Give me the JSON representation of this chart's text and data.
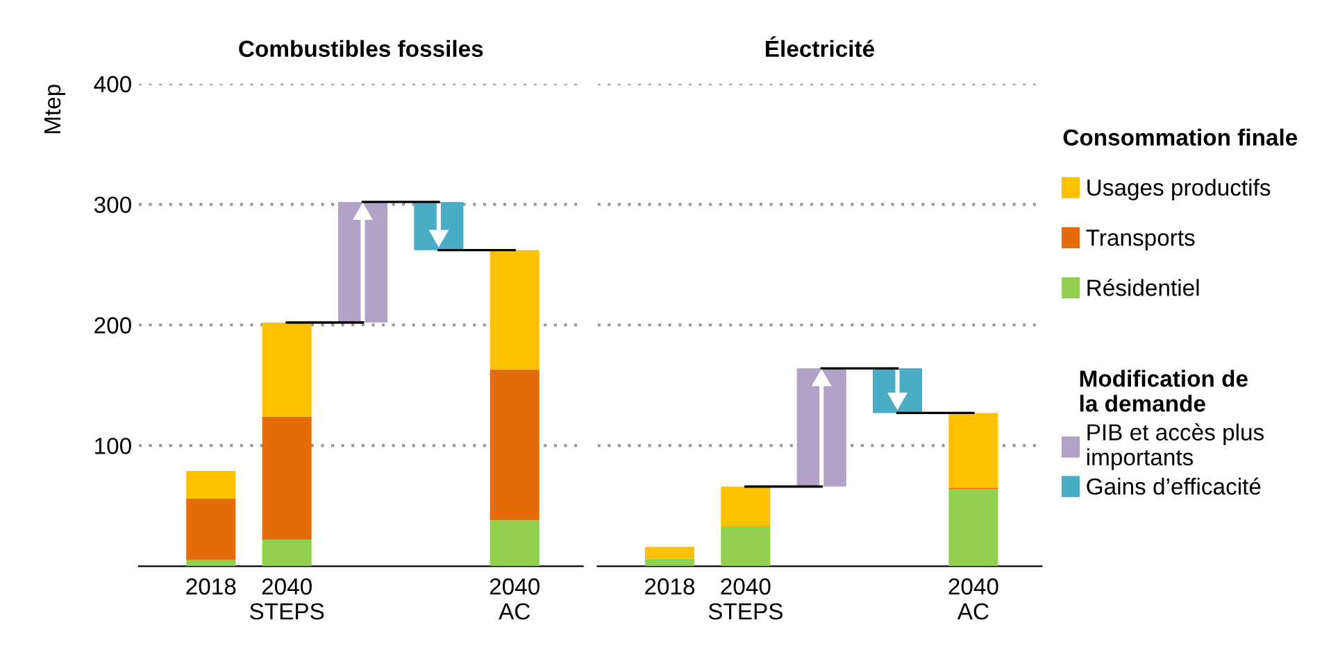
{
  "chart_data": [
    {
      "type": "bar",
      "title": "Combustibles fossiles",
      "ylabel": "Mtep",
      "stacked": true,
      "categories": [
        "2018",
        "2040\nSTEPS",
        null,
        null,
        "2040\nAC"
      ],
      "ylim": [
        0,
        400
      ],
      "yticks": [
        100,
        200,
        300,
        400
      ],
      "grid": "y",
      "series": [
        {
          "color": "#92d050",
          "values": [
            5,
            22,
            null,
            null,
            38
          ]
        },
        {
          "color": "#e46c0a",
          "values": [
            51,
            102,
            null,
            null,
            125
          ]
        },
        {
          "color": "#ffc000",
          "values": [
            23,
            78,
            null,
            null,
            99
          ]
        },
        {
          "color": "#b3a2c7",
          "values": [
            null,
            null,
            100,
            null,
            null
          ],
          "base": [
            null,
            null,
            202,
            null,
            null
          ]
        },
        {
          "color": "#4bacc6",
          "values": [
            null,
            null,
            null,
            40,
            null
          ],
          "base": [
            null,
            null,
            null,
            262,
            null
          ]
        }
      ]
    },
    {
      "type": "bar",
      "title": "Électricité",
      "stacked": true,
      "categories": [
        "2018",
        "2040\nSTEPS",
        null,
        null,
        "2040\nAC"
      ],
      "ylim": [
        0,
        400
      ],
      "yticks": [
        100,
        200,
        300,
        400
      ],
      "grid": "y",
      "tick_labels": "x",
      "legend": "right",
      "legend_title": "Consommation finale",
      "annotations": [
        "Modification de\nla demande"
      ],
      "series": [
        {
          "name": "Résidentiel",
          "color": "#92d050",
          "values": [
            6,
            33,
            null,
            null,
            64
          ]
        },
        {
          "name": "Transports",
          "color": "#e46c0a",
          "values": [
            null,
            null,
            null,
            null,
            1
          ]
        },
        {
          "name": "Usages productifs",
          "color": "#ffc000",
          "values": [
            10,
            33,
            null,
            null,
            62
          ]
        },
        {
          "name": "PIB et accès plus\nimportants",
          "color": "#b3a2c7",
          "values": [
            null,
            null,
            98,
            null,
            null
          ],
          "base": [
            null,
            null,
            66,
            null,
            null
          ]
        },
        {
          "name": "Gains d’efficacité",
          "color": "#4bacc6",
          "values": [
            null,
            null,
            null,
            37,
            null
          ],
          "base": [
            null,
            null,
            null,
            127,
            null
          ]
        }
      ]
    }
  ]
}
